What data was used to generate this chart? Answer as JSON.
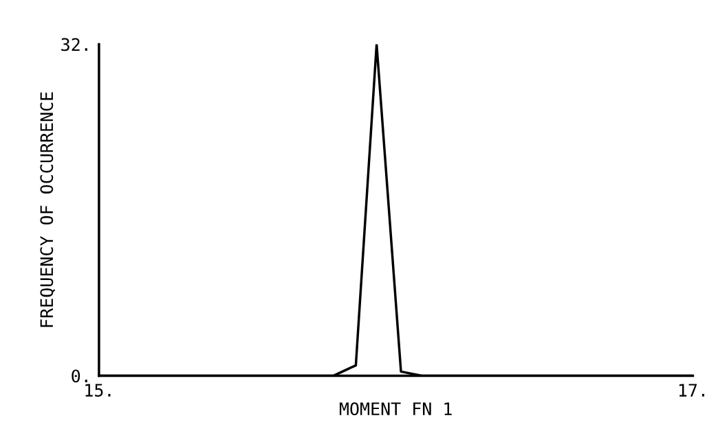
{
  "chart_data": {
    "type": "line",
    "xlabel": "MOMENT FN 1",
    "ylabel": "FREQUENCY OF OCCURRENCE",
    "x": [
      15,
      15.79,
      15.865,
      15.935,
      16.017,
      16.087,
      17
    ],
    "values": [
      0,
      0,
      1,
      32,
      0.4,
      0,
      0
    ],
    "color": "#000000",
    "xlim": [
      15,
      17
    ],
    "ylim": [
      0,
      32
    ],
    "xticks": [
      {
        "value": 15,
        "label": "15."
      },
      {
        "value": 17,
        "label": "17."
      }
    ],
    "yticks": [
      {
        "value": 0,
        "label": "0."
      },
      {
        "value": 32,
        "label": "32."
      }
    ],
    "grid": false,
    "legend": false,
    "marker": "none",
    "line_style": "solid"
  }
}
